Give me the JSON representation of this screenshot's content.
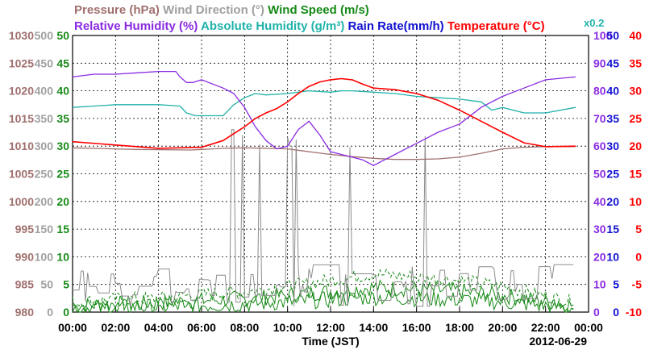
{
  "chart_data": {
    "type": "line",
    "legend_line1": [
      {
        "text": "Pressure (hPa)",
        "color": "#a0706e"
      },
      {
        "text": "Wind Direction (°)",
        "color": "#a0a0a0"
      },
      {
        "text": "Wind Speed (m/s)",
        "color": "#178a17"
      }
    ],
    "legend_line2": [
      {
        "text": "Relative Humidity (%)",
        "color": "#8a2be2"
      },
      {
        "text": "Absolute Humidity (g/m³)",
        "color": "#20b2aa"
      },
      {
        "text": "Rain Rate(mm/h)",
        "color": "#1010d0"
      },
      {
        "text": "Temperature (°C)",
        "color": "#ff0000"
      }
    ],
    "rain_scale_note": "x0.2",
    "xlabel": "Time (JST)",
    "date_label": "2012-06-29",
    "x_ticks": [
      "00:00",
      "02:00",
      "04:00",
      "06:00",
      "08:00",
      "10:00",
      "12:00",
      "14:00",
      "16:00",
      "18:00",
      "20:00",
      "22:00",
      "00:00"
    ],
    "axes": {
      "pressure": {
        "color": "#a0706e",
        "ticks": [
          1030,
          1025,
          1020,
          1015,
          1010,
          1005,
          1000,
          995,
          990,
          985,
          980
        ],
        "range": [
          980,
          1030
        ]
      },
      "wind_direction": {
        "color": "#a0a0a0",
        "ticks": [
          500,
          450,
          400,
          350,
          300,
          250,
          200,
          150,
          100,
          50,
          0
        ],
        "range": [
          0,
          500
        ]
      },
      "wind_speed": {
        "color": "#178a17",
        "ticks": [
          50,
          45,
          40,
          35,
          30,
          25,
          20,
          15,
          10,
          5,
          0
        ],
        "range": [
          0,
          50
        ]
      },
      "humidity": {
        "color": "#8a2be2",
        "ticks": [
          100,
          90,
          80,
          70,
          60,
          50,
          40,
          30,
          20,
          10,
          0
        ],
        "range": [
          0,
          100
        ]
      },
      "rain": {
        "color": "#1010d0",
        "ticks": [
          50,
          45,
          40,
          35,
          30,
          25,
          20,
          15,
          10,
          5,
          0
        ],
        "range": [
          0,
          50
        ]
      },
      "temperature": {
        "color": "#ff0000",
        "ticks": [
          40,
          35,
          30,
          25,
          20,
          15,
          10,
          5,
          0,
          -5,
          -10
        ],
        "range": [
          -10,
          40
        ]
      }
    },
    "series": [
      {
        "name": "Pressure (hPa)",
        "color": "#a0706e",
        "axis": "pressure",
        "x": [
          0,
          3,
          5.5,
          7,
          8,
          9,
          10,
          11,
          12,
          13,
          14,
          15,
          16,
          17,
          18,
          19,
          20,
          21,
          22,
          23.4
        ],
        "y": [
          1009.7,
          1009.4,
          1009.3,
          1009.6,
          1009.7,
          1009.6,
          1009.5,
          1009.0,
          1008.5,
          1008.1,
          1007.8,
          1007.6,
          1007.6,
          1007.7,
          1008.0,
          1008.7,
          1009.5,
          1009.8,
          1009.9,
          1009.9
        ]
      },
      {
        "name": "Temperature (°C)",
        "color": "#ff0000",
        "axis": "temperature",
        "x": [
          0,
          2,
          4,
          6,
          7,
          8,
          8.5,
          9,
          9.5,
          10,
          10.5,
          11,
          11.5,
          12,
          12.5,
          13,
          13.5,
          14,
          15,
          16,
          17,
          18,
          19,
          20,
          21,
          22,
          23.4
        ],
        "y": [
          20.8,
          20.2,
          19.6,
          19.8,
          21.0,
          23.5,
          25.0,
          26.0,
          26.8,
          28.0,
          29.5,
          30.8,
          31.6,
          32.0,
          32.2,
          32.0,
          31.2,
          30.5,
          30.2,
          29.5,
          28.3,
          26.5,
          24.5,
          22.5,
          20.6,
          19.9,
          20.0
        ]
      },
      {
        "name": "Relative Humidity (%)",
        "color": "#8a2be2",
        "axis": "humidity",
        "x": [
          0,
          1,
          2,
          3,
          4,
          4.8,
          5,
          5.3,
          5.6,
          6,
          7,
          7.5,
          8,
          8.5,
          9,
          9.5,
          10,
          10.5,
          11,
          11.5,
          12,
          12.5,
          13,
          13.5,
          14,
          14.5,
          15,
          15.5,
          16,
          16.5,
          17,
          18,
          19,
          20,
          21,
          22,
          23.4
        ],
        "y": [
          85,
          86,
          86,
          86.5,
          87,
          87,
          85,
          83,
          83,
          84,
          81,
          79,
          74,
          67,
          62,
          59,
          60,
          66,
          69,
          64,
          58,
          57,
          56,
          55,
          53,
          55,
          57,
          59,
          61,
          63,
          65,
          68,
          74,
          78,
          81,
          84,
          85
        ]
      },
      {
        "name": "Absolute Humidity (g/m³)",
        "color": "#20b2aa",
        "axis": "humidity",
        "x": [
          0,
          1,
          2,
          3,
          4,
          5,
          5.3,
          5.7,
          6,
          7,
          7.5,
          8,
          8.5,
          9,
          10,
          11,
          12,
          12.5,
          13,
          14,
          15,
          16,
          17,
          18,
          19,
          19.5,
          20,
          21,
          22,
          23.4
        ],
        "y": [
          74,
          74.5,
          75,
          75,
          75,
          74.5,
          72,
          71,
          71,
          71,
          75,
          77.5,
          79,
          78.5,
          79,
          80,
          79.5,
          80,
          80,
          79.5,
          79,
          78,
          77.5,
          77,
          76,
          73,
          74,
          72,
          72,
          74
        ]
      },
      {
        "name": "Wind Direction (°)",
        "color": "#8c8c8c",
        "axis": "wind_direction",
        "spikes": [
          [
            7.45,
            330
          ],
          [
            7.9,
            320
          ],
          [
            8.7,
            303
          ],
          [
            10.05,
            315
          ],
          [
            10.15,
            300
          ],
          [
            10.4,
            312
          ],
          [
            12.9,
            298
          ],
          [
            16.4,
            318
          ]
        ],
        "base_range": [
          10,
          120
        ]
      },
      {
        "name": "Wind Speed (m/s)",
        "color": "#178a17",
        "axis": "wind_speed",
        "base_x": [
          0,
          2,
          4,
          6,
          8,
          10,
          12,
          14,
          16,
          18,
          20,
          22,
          23.4
        ],
        "base_y": [
          1.5,
          2,
          2.2,
          2.8,
          3.2,
          4,
          5,
          6,
          5.5,
          5,
          4,
          2.5,
          1.5
        ]
      }
    ]
  }
}
